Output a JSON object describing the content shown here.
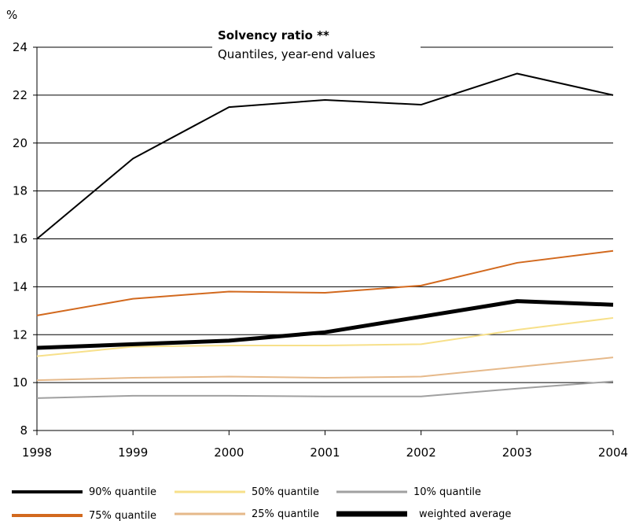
{
  "chart_data": {
    "type": "line",
    "title": "Solvency ratio **",
    "subtitle": "Quantiles, year-end values",
    "ylabel": "%",
    "xlabel": "",
    "x": [
      "1998",
      "1999",
      "2000",
      "2001",
      "2002",
      "2003",
      "2004"
    ],
    "ylim": [
      8,
      24
    ],
    "yticks": [
      8,
      10,
      12,
      14,
      16,
      18,
      20,
      22,
      24
    ],
    "grid": true,
    "legend_position": "bottom",
    "series": [
      {
        "name": "90% quantile",
        "color": "#000000",
        "values": [
          16.0,
          19.35,
          21.5,
          21.8,
          21.6,
          22.9,
          22.0
        ]
      },
      {
        "name": "75% quantile",
        "color": "#d2691e",
        "values": [
          12.8,
          13.5,
          13.8,
          13.75,
          14.05,
          15.0,
          15.5
        ]
      },
      {
        "name": "50% quantile",
        "color": "#f7e08a",
        "values": [
          11.1,
          11.5,
          11.55,
          11.55,
          11.6,
          12.2,
          12.7
        ]
      },
      {
        "name": "25% quantile",
        "color": "#e6b98a",
        "values": [
          10.1,
          10.2,
          10.25,
          10.2,
          10.25,
          10.65,
          11.05
        ]
      },
      {
        "name": "10% quantile",
        "color": "#a0a0a0",
        "values": [
          9.35,
          9.45,
          9.45,
          9.42,
          9.42,
          9.75,
          10.05
        ]
      },
      {
        "name": "weighted average",
        "color": "#000000",
        "values": [
          11.45,
          11.6,
          11.75,
          12.1,
          12.75,
          13.4,
          13.25
        ]
      }
    ]
  }
}
